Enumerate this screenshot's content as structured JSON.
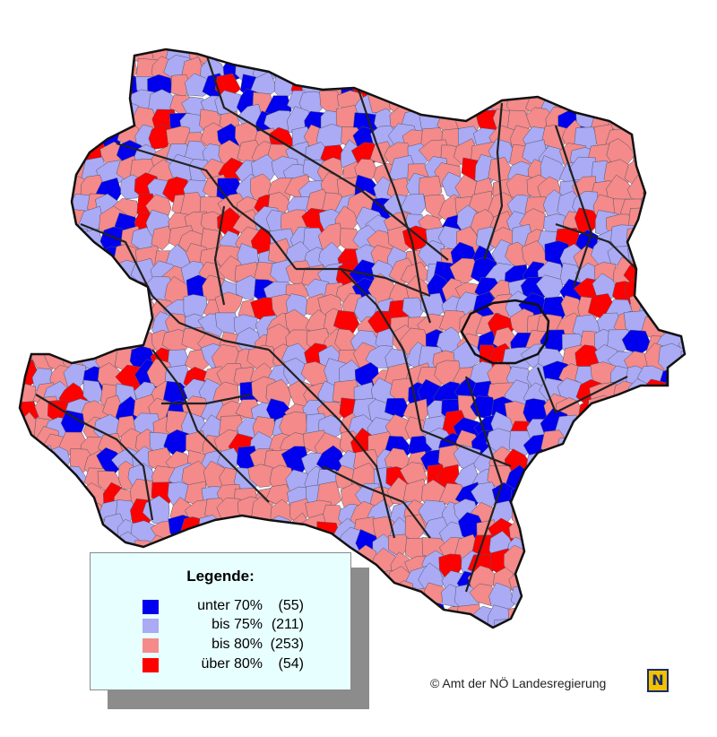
{
  "colors": {
    "under_70": "#0000ee",
    "to_75": "#aaaaf5",
    "to_80": "#f48a8a",
    "over_80": "#ff0000",
    "district_border": "#222222",
    "municipality_border": "#555566"
  },
  "legend": {
    "title": "Legende:",
    "entries": [
      {
        "label": "unter 70%",
        "count": "(55)",
        "color": "#0000ee"
      },
      {
        "label": "bis 75%",
        "count": "(211)",
        "color": "#aaaaf5"
      },
      {
        "label": "bis 80%",
        "count": "(253)",
        "color": "#f48a8a"
      },
      {
        "label": "über 80%",
        "count": "(54)",
        "color": "#ff0000"
      }
    ]
  },
  "copyright": "© Amt der NÖ Landesregierung",
  "logo": {
    "letter": "N",
    "icon": "noe-logo-icon"
  }
}
